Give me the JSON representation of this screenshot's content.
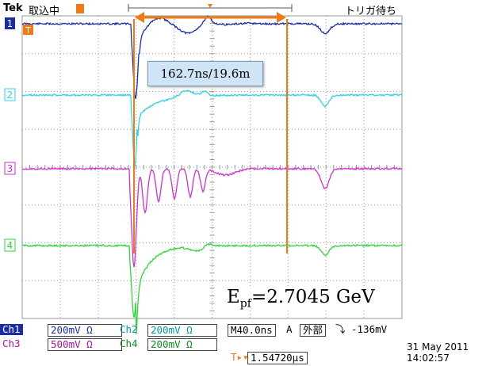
{
  "header": {
    "brand": "Tek",
    "acquisition_state": "取込中",
    "trigger_status": "トリガ待ち"
  },
  "measurement": {
    "delta_label": "162.7ns/19.6m"
  },
  "annotation": {
    "energy_main": "E",
    "energy_sub": "pf",
    "energy_value": "=2.7045 GeV"
  },
  "channel_markers": [
    "1",
    "2",
    "3",
    "4"
  ],
  "trigger_marker": "T",
  "settings": {
    "ch1": {
      "label": "Ch1",
      "scale": "200mV Ω"
    },
    "ch2": {
      "label": "Ch2",
      "scale": "200mV Ω"
    },
    "ch3": {
      "label": "Ch3",
      "scale": "500mV Ω"
    },
    "ch4": {
      "label": "Ch4",
      "scale": "200mV Ω"
    },
    "timebase": {
      "label": "M",
      "value": "40.0ns"
    },
    "trigger": {
      "mode": "A",
      "source": "外部",
      "slope": "⤵",
      "level": "-136mV"
    },
    "horizontal_position": {
      "icon": "T▸▾",
      "value": "1.54720μs"
    }
  },
  "datetime": {
    "date": "31 May 2011",
    "time": "14:02:57"
  },
  "colors": {
    "ch1": "#1b2ca8",
    "ch2": "#2ad6e6",
    "ch3": "#d22fd2",
    "ch4": "#2fd83a",
    "cursor": "#f07a16",
    "grid": "#9a9a9a"
  }
}
